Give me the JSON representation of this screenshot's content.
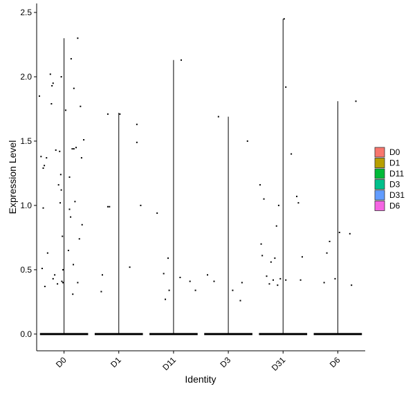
{
  "chart_data": {
    "type": "scatter",
    "subtype": "violin-jitter",
    "title": "",
    "xlabel": "Identity",
    "ylabel": "Expression Level",
    "ylim": [
      -0.13,
      2.57
    ],
    "yticks": [
      "0.0",
      "0.5",
      "1.0",
      "1.5",
      "2.0",
      "2.5"
    ],
    "ytick_values": [
      0,
      0.5,
      1.0,
      1.5,
      2.0,
      2.5
    ],
    "categories": [
      "D0",
      "D1",
      "D11",
      "D3",
      "D31",
      "D6"
    ],
    "grid": false,
    "legend_position": "right",
    "series": [
      {
        "name": "D0",
        "color": "#F8766D",
        "max": 2.3,
        "zero_band": true,
        "points": [
          [
            -0.45,
            1.85
          ],
          [
            -0.32,
            1.37
          ],
          [
            -0.38,
            1.29
          ],
          [
            -0.36,
            1.31
          ],
          [
            -0.4,
            0.51
          ],
          [
            -0.35,
            0.37
          ],
          [
            -0.3,
            0.63
          ],
          [
            -0.25,
            2.02
          ],
          [
            -0.22,
            1.93
          ],
          [
            -0.2,
            1.95
          ],
          [
            -0.23,
            1.79
          ],
          [
            -0.15,
            1.43
          ],
          [
            -0.17,
            0.46
          ],
          [
            -0.2,
            0.43
          ],
          [
            -0.12,
            0.39
          ],
          [
            -0.08,
            1.42
          ],
          [
            -0.1,
            1.16
          ],
          [
            -0.06,
            1.24
          ],
          [
            -0.05,
            1.12
          ],
          [
            -0.07,
            1.02
          ],
          [
            -0.03,
            0.76
          ],
          [
            -0.02,
            0.5
          ],
          [
            -0.04,
            0.41
          ],
          [
            -0.02,
            0.4
          ],
          [
            -0.05,
            2.0
          ],
          [
            0.03,
            1.74
          ],
          [
            0.08,
            0.65
          ],
          [
            0.1,
            0.97
          ],
          [
            0.12,
            0.91
          ],
          [
            0.1,
            1.22
          ],
          [
            0.15,
            1.44
          ],
          [
            0.18,
            1.44
          ],
          [
            0.22,
            1.45
          ],
          [
            0.13,
            2.14
          ],
          [
            0.18,
            1.91
          ],
          [
            0.25,
            2.3
          ],
          [
            0.3,
            1.77
          ],
          [
            0.32,
            1.37
          ],
          [
            0.36,
            1.51
          ],
          [
            0.28,
            0.74
          ],
          [
            0.33,
            0.85
          ],
          [
            0.2,
            1.03
          ],
          [
            0.25,
            0.4
          ],
          [
            0.17,
            0.54
          ],
          [
            0.16,
            0.31
          ],
          [
            -0.42,
            1.38
          ],
          [
            -0.38,
            0.98
          ]
        ]
      },
      {
        "name": "D1",
        "color": "#B79F00",
        "max": 1.72,
        "zero_band": true,
        "points": [
          [
            -0.32,
            0.33
          ],
          [
            -0.3,
            0.46
          ],
          [
            -0.2,
            0.99
          ],
          [
            -0.2,
            1.71
          ],
          [
            -0.17,
            0.99
          ],
          [
            0.02,
            1.71
          ],
          [
            0.2,
            0.52
          ],
          [
            0.33,
            1.63
          ],
          [
            0.33,
            1.49
          ],
          [
            0.4,
            1.0
          ]
        ]
      },
      {
        "name": "D11",
        "color": "#00BA38",
        "max": 2.13,
        "zero_band": true,
        "points": [
          [
            -0.3,
            0.94
          ],
          [
            -0.18,
            0.47
          ],
          [
            -0.15,
            0.27
          ],
          [
            -0.1,
            0.59
          ],
          [
            -0.08,
            0.34
          ],
          [
            0.14,
            2.13
          ],
          [
            0.12,
            0.44
          ],
          [
            0.3,
            0.41
          ],
          [
            0.4,
            0.34
          ]
        ]
      },
      {
        "name": "D3",
        "color": "#00C08B",
        "max": 1.69,
        "zero_band": true,
        "points": [
          [
            -0.38,
            0.46
          ],
          [
            -0.26,
            0.41
          ],
          [
            -0.18,
            1.69
          ],
          [
            0.08,
            0.34
          ],
          [
            0.22,
            0.26
          ],
          [
            0.25,
            0.4
          ],
          [
            0.35,
            1.5
          ]
        ]
      },
      {
        "name": "D31",
        "color": "#619CFF",
        "max": 2.45,
        "zero_band": true,
        "points": [
          [
            -0.42,
            1.16
          ],
          [
            -0.35,
            1.05
          ],
          [
            -0.4,
            0.7
          ],
          [
            -0.38,
            0.61
          ],
          [
            -0.3,
            0.45
          ],
          [
            -0.22,
            0.56
          ],
          [
            -0.25,
            0.39
          ],
          [
            -0.18,
            0.42
          ],
          [
            -0.15,
            0.59
          ],
          [
            -0.12,
            0.84
          ],
          [
            -0.1,
            0.38
          ],
          [
            -0.05,
            0.43
          ],
          [
            -0.08,
            1.0
          ],
          [
            0.02,
            2.45
          ],
          [
            0.05,
            1.92
          ],
          [
            0.05,
            0.42
          ],
          [
            0.15,
            1.4
          ],
          [
            0.25,
            1.07
          ],
          [
            0.28,
            1.02
          ],
          [
            0.35,
            0.6
          ],
          [
            0.32,
            0.42
          ]
        ]
      },
      {
        "name": "D6",
        "color": "#F564E3",
        "max": 1.81,
        "zero_band": true,
        "points": [
          [
            -0.25,
            0.4
          ],
          [
            -0.2,
            0.63
          ],
          [
            -0.15,
            0.72
          ],
          [
            -0.05,
            0.43
          ],
          [
            0.03,
            0.79
          ],
          [
            0.22,
            0.78
          ],
          [
            0.25,
            0.38
          ],
          [
            0.33,
            1.81
          ]
        ]
      }
    ]
  }
}
